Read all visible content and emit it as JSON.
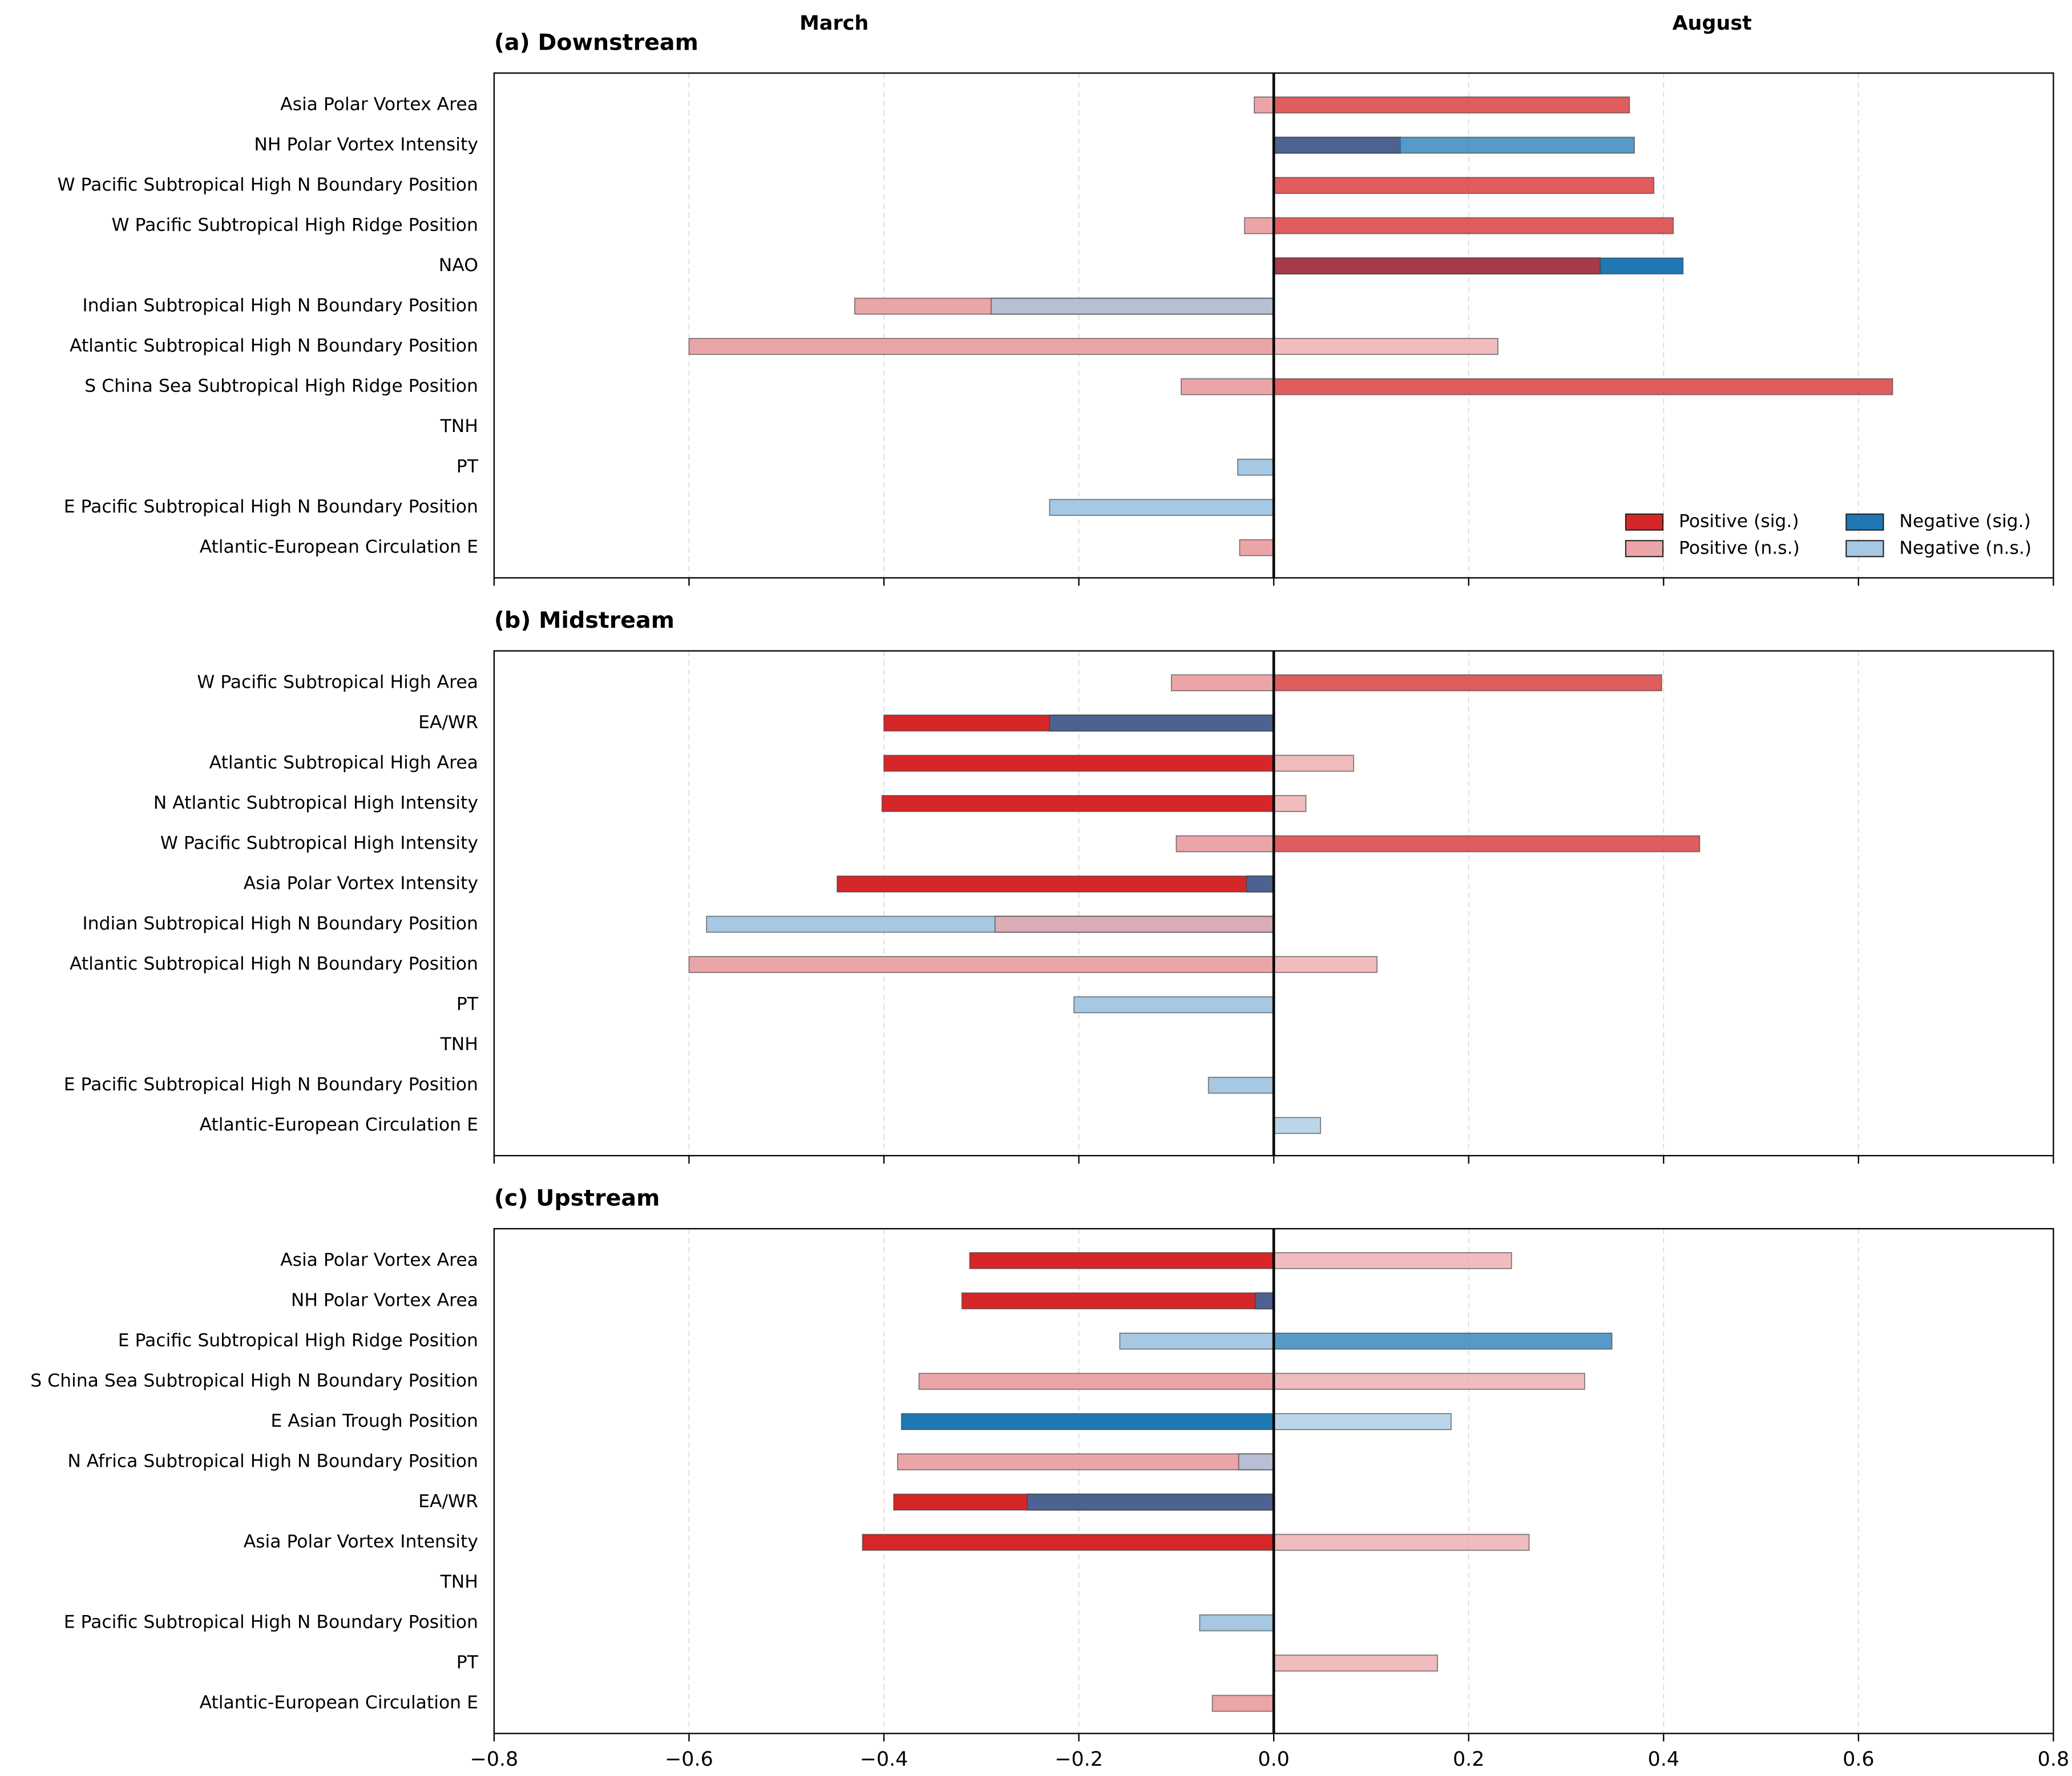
{
  "column_labels": [
    "March",
    "August"
  ],
  "chart_data": [
    {
      "type": "hbar-pair",
      "title": "(a) Downstream",
      "categories": [
        "Asia Polar Vortex Area",
        "NH Polar Vortex Intensity",
        "W Pacific Subtropical High N Boundary Position",
        "W Pacific Subtropical High Ridge Position",
        "NAO",
        "Indian Subtropical High N Boundary Position",
        "Atlantic Subtropical High N Boundary Position",
        "S China Sea Subtropical High Ridge Position",
        "TNH",
        "PT",
        "E Pacific Subtropical High N Boundary Position",
        "Atlantic-European Circulation E"
      ],
      "series": [
        {
          "values": [
            -0.02,
            0.13,
            null,
            -0.03,
            0.42,
            -0.43,
            -0.6,
            -0.095,
            null,
            -0.037,
            -0.23,
            -0.035
          ],
          "colors": [
            "#eba5a8",
            "#d62728",
            null,
            "#eba5a8",
            "#1f77b4",
            "#eba5a8",
            "#eba5a8",
            "#eba5a8",
            null,
            "#a6c8e2",
            "#a6c8e2",
            "#eba5a8"
          ]
        },
        {
          "values": [
            0.365,
            0.37,
            0.39,
            0.41,
            0.335,
            -0.29,
            0.23,
            0.635,
            null,
            null,
            null,
            null
          ],
          "colors": [
            "#d62728",
            "#1f77b4",
            "#d62728",
            "#d62728",
            "#d62728",
            "#a6c8e2",
            "#eba5a8",
            "#d62728",
            null,
            null,
            null,
            null
          ]
        }
      ],
      "xlim": [
        -0.8,
        0.8
      ],
      "xticks": [
        -0.8,
        -0.6,
        -0.4,
        -0.2,
        0,
        0.2,
        0.4,
        0.6,
        0.8
      ],
      "grid": true,
      "legend": {
        "position": "lower right",
        "entries": [
          {
            "name": "Positive (sig.)",
            "color": "#d62728"
          },
          {
            "name": "Positive (n.s.)",
            "color": "#eba5a8"
          },
          {
            "name": "Negative (sig.)",
            "color": "#1f77b4"
          },
          {
            "name": "Negative (n.s.)",
            "color": "#a6c8e2"
          }
        ]
      }
    },
    {
      "type": "hbar-pair",
      "title": "(b) Midstream",
      "categories": [
        "W Pacific Subtropical High Area",
        "EA/WR",
        "Atlantic Subtropical High Area",
        "N Atlantic Subtropical High Intensity",
        "W Pacific Subtropical High Intensity",
        "Asia Polar Vortex Intensity",
        "Indian Subtropical High N Boundary Position",
        "Atlantic Subtropical High N Boundary Position",
        "PT",
        "TNH",
        "E Pacific Subtropical High N Boundary Position",
        "Atlantic-European Circulation E"
      ],
      "series": [
        {
          "values": [
            -0.105,
            -0.4,
            -0.4,
            -0.402,
            -0.1,
            -0.448,
            -0.582,
            -0.6,
            -0.205,
            null,
            -0.067,
            null
          ],
          "colors": [
            "#eba5a8",
            "#d62728",
            "#d62728",
            "#d62728",
            "#eba5a8",
            "#d62728",
            "#a6c8e2",
            "#eba5a8",
            "#a6c8e2",
            null,
            "#a6c8e2",
            null
          ]
        },
        {
          "values": [
            0.398,
            -0.23,
            0.082,
            0.033,
            0.437,
            -0.028,
            -0.286,
            0.106,
            null,
            null,
            null,
            0.048
          ],
          "colors": [
            "#d62728",
            "#1f77b4",
            "#eba5a8",
            "#eba5a8",
            "#d62728",
            "#1f77b4",
            "#eba5a8",
            "#eba5a8",
            null,
            null,
            null,
            "#a6c8e2"
          ]
        }
      ],
      "xlim": [
        -0.8,
        0.8
      ],
      "xticks": [
        -0.8,
        -0.6,
        -0.4,
        -0.2,
        0,
        0.2,
        0.4,
        0.6,
        0.8
      ],
      "grid": true
    },
    {
      "type": "hbar-pair",
      "title": "(c) Upstream",
      "categories": [
        "Asia Polar Vortex Area",
        "NH Polar Vortex Area",
        "E Pacific Subtropical High Ridge Position",
        "S China Sea Subtropical High N Boundary Position",
        "E Asian Trough Position",
        "N Africa Subtropical High N Boundary Position",
        "EA/WR",
        "Asia Polar Vortex Intensity",
        "TNH",
        "E Pacific Subtropical High N Boundary Position",
        "PT",
        "Atlantic-European Circulation E"
      ],
      "series": [
        {
          "values": [
            -0.312,
            -0.32,
            -0.158,
            -0.364,
            -0.382,
            -0.386,
            -0.39,
            -0.422,
            null,
            -0.076,
            null,
            -0.063
          ],
          "colors": [
            "#d62728",
            "#d62728",
            "#a6c8e2",
            "#eba5a8",
            "#1f77b4",
            "#eba5a8",
            "#d62728",
            "#d62728",
            null,
            "#a6c8e2",
            null,
            "#eba5a8"
          ]
        },
        {
          "values": [
            0.244,
            -0.019,
            0.347,
            0.319,
            0.182,
            -0.036,
            -0.253,
            0.262,
            null,
            null,
            0.168,
            null
          ],
          "colors": [
            "#eba5a8",
            "#1f77b4",
            "#1f77b4",
            "#eba5a8",
            "#a6c8e2",
            "#a6c8e2",
            "#1f77b4",
            "#eba5a8",
            null,
            null,
            "#eba5a8",
            null
          ]
        }
      ],
      "xlim": [
        -0.8,
        0.8
      ],
      "xticks": [
        {
          "value": -0.8,
          "label": "−0.8"
        },
        {
          "value": -0.6,
          "label": "−0.6"
        },
        {
          "value": -0.4,
          "label": "−0.4"
        },
        {
          "value": -0.2,
          "label": "−0.2"
        },
        {
          "value": 0,
          "label": "0.0"
        },
        {
          "value": 0.2,
          "label": "0.2"
        },
        {
          "value": 0.4,
          "label": "0.4"
        },
        {
          "value": 0.6,
          "label": "0.6"
        },
        {
          "value": 0.8,
          "label": "0.8"
        }
      ],
      "grid": true
    }
  ]
}
